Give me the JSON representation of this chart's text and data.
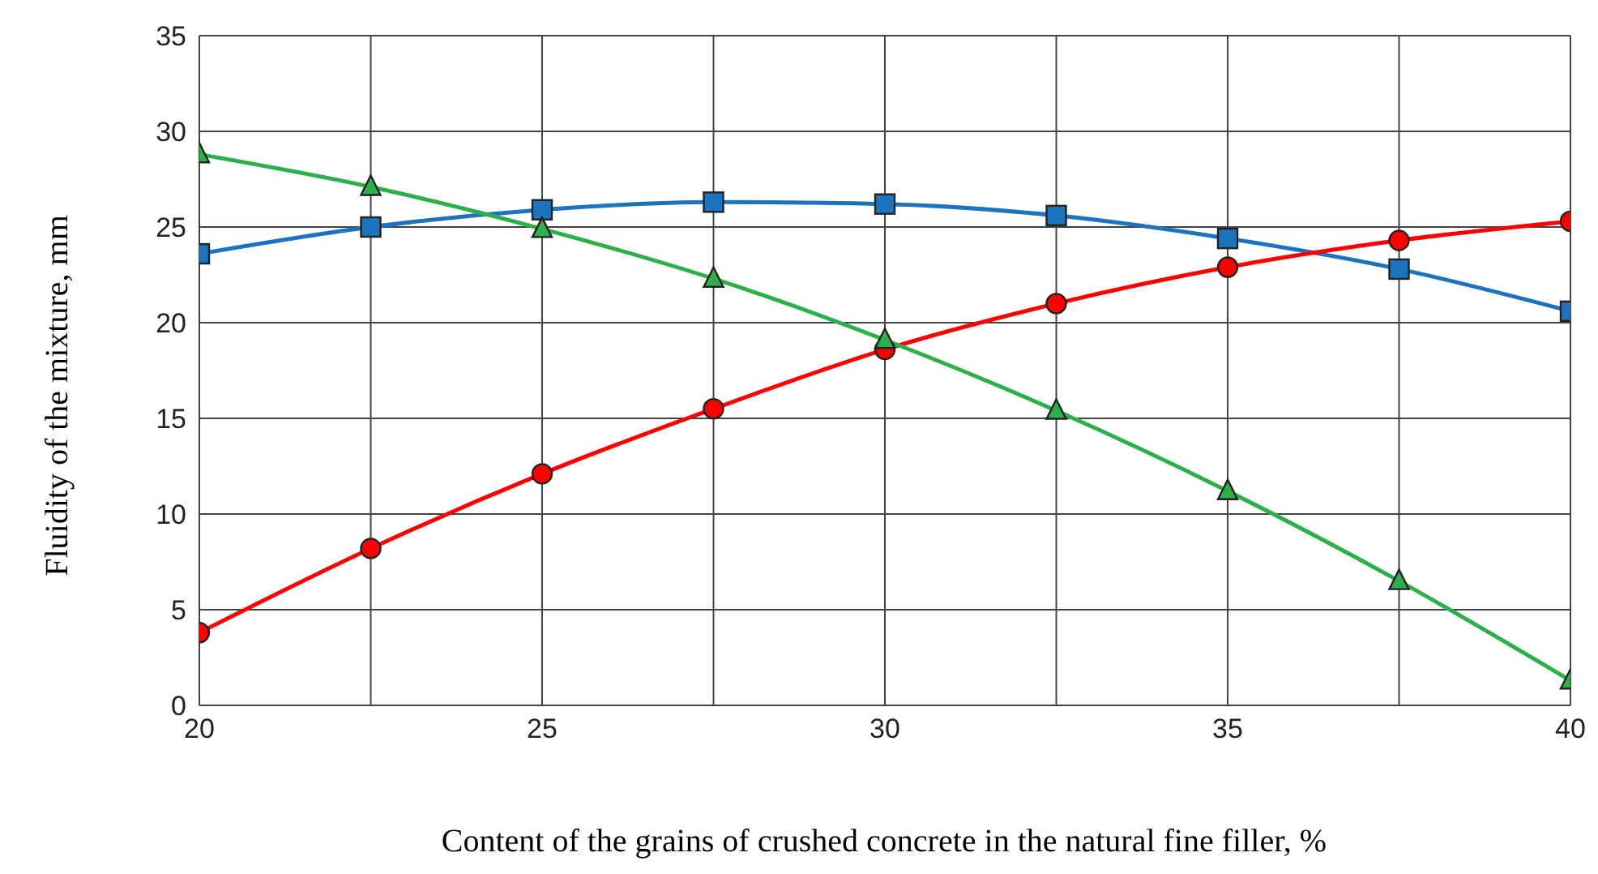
{
  "chart_data": {
    "type": "line",
    "xlabel": "Content of the grains of crushed concrete in the natural fine filler, %",
    "ylabel": "Fluidity of  the mixture, mm",
    "x": [
      20,
      22.5,
      25,
      27.5,
      30,
      32.5,
      35,
      37.5,
      40
    ],
    "series": [
      {
        "color": "#1e73be",
        "marker": "square",
        "values": [
          23.6,
          25.0,
          25.9,
          26.3,
          26.2,
          25.6,
          24.4,
          22.8,
          20.6
        ]
      },
      {
        "color": "#ff0000",
        "marker": "circle",
        "values": [
          3.8,
          8.2,
          12.1,
          15.5,
          18.6,
          21.0,
          22.9,
          24.3,
          25.3
        ]
      },
      {
        "color": "#2db04b",
        "marker": "triangle",
        "values": [
          28.8,
          27.1,
          24.9,
          22.3,
          19.1,
          15.4,
          11.2,
          6.5,
          1.3
        ]
      }
    ],
    "xlim": [
      20,
      40
    ],
    "xticks": [
      20,
      {
        "value": 22.5,
        "label": null
      },
      25,
      {
        "value": 27.5,
        "label": null
      },
      30,
      {
        "value": 32.5,
        "label": null
      },
      35,
      {
        "value": 37.5,
        "label": null
      },
      40
    ],
    "ylim": [
      0,
      35
    ],
    "yticks": [
      0,
      5,
      10,
      15,
      20,
      25,
      30,
      35
    ],
    "grid": true,
    "legend": false,
    "line_style": "solid"
  }
}
